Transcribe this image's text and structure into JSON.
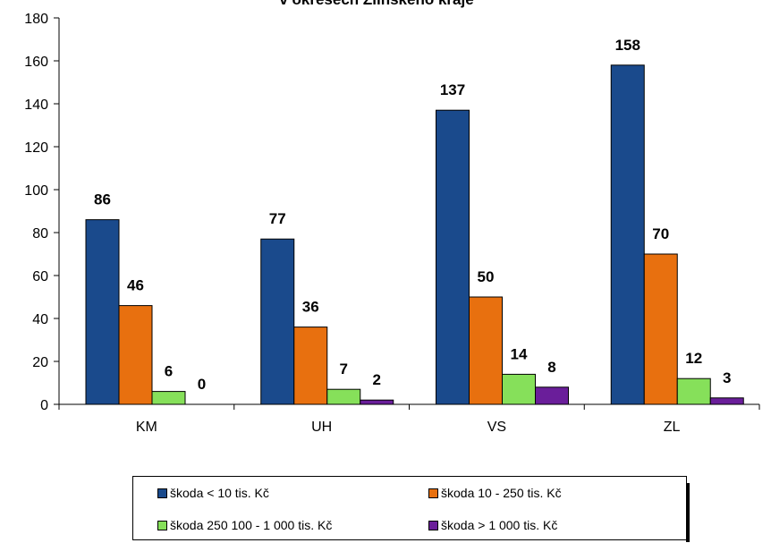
{
  "chart_data": {
    "type": "bar",
    "title": "v okresech Zlínského kraje",
    "categories": [
      "KM",
      "UH",
      "VS",
      "ZL"
    ],
    "ylim": [
      0,
      180
    ],
    "yticks": [
      0,
      20,
      40,
      60,
      80,
      100,
      120,
      140,
      160,
      180
    ],
    "grid": false,
    "legend_position": "bottom",
    "series": [
      {
        "name": "škoda < 10 tis. Kč",
        "color": "#1a4a8c",
        "values": [
          86,
          77,
          137,
          158
        ]
      },
      {
        "name": "škoda 10 - 250 tis. Kč",
        "color": "#e8700f",
        "values": [
          46,
          36,
          50,
          70
        ]
      },
      {
        "name": "škoda 250 100 - 1 000 tis. Kč",
        "color": "#86e05a",
        "values": [
          6,
          7,
          14,
          12
        ]
      },
      {
        "name": "škoda > 1 000 tis. Kč",
        "color": "#6a1e9a",
        "values": [
          0,
          2,
          8,
          3
        ]
      }
    ]
  }
}
